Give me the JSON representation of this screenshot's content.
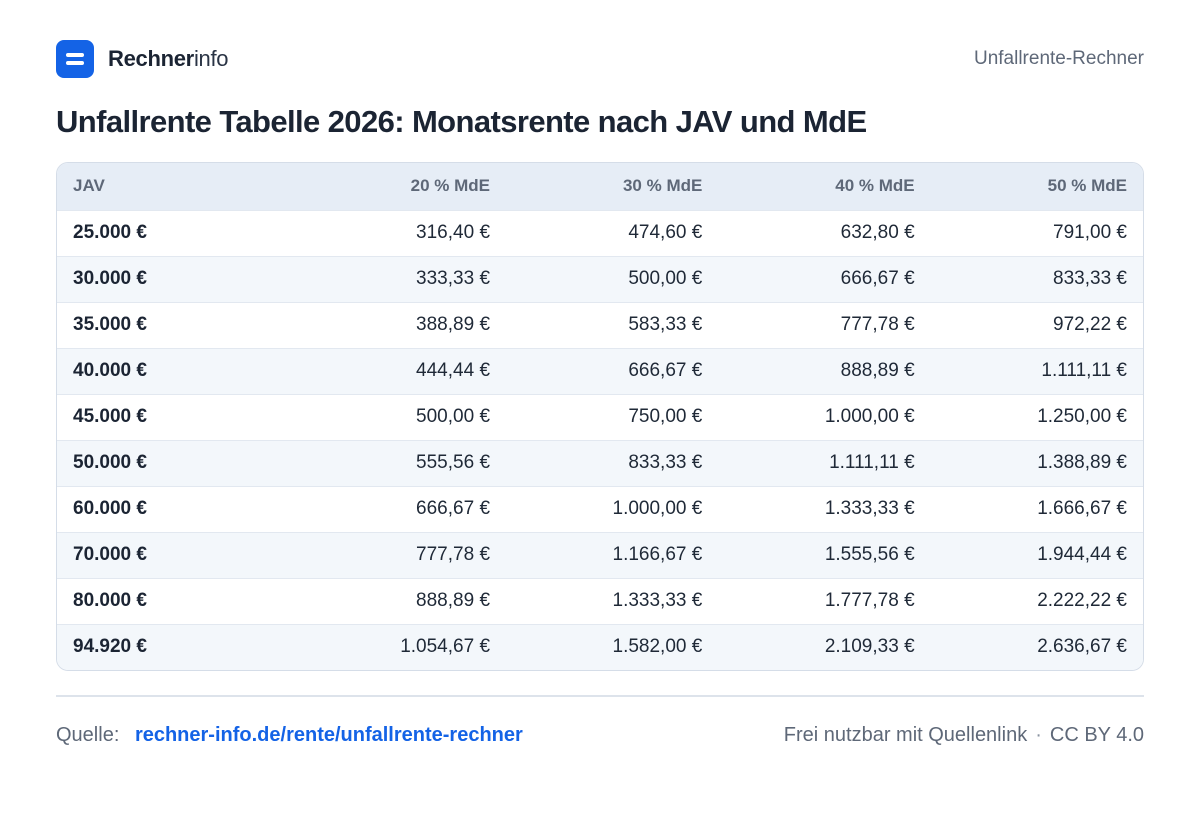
{
  "brand": {
    "name_bold": "Rechner",
    "name_light": "info"
  },
  "header": {
    "right_label": "Unfallrente-Rechner"
  },
  "title": "Unfallrente Tabelle 2026: Monatsrente nach JAV und MdE",
  "table": {
    "headers": [
      "JAV",
      "20 % MdE",
      "30 % MdE",
      "40 % MdE",
      "50 % MdE"
    ],
    "rows": [
      [
        "25.000 €",
        "316,40 €",
        "474,60 €",
        "632,80 €",
        "791,00 €"
      ],
      [
        "30.000 €",
        "333,33 €",
        "500,00 €",
        "666,67 €",
        "833,33 €"
      ],
      [
        "35.000 €",
        "388,89 €",
        "583,33 €",
        "777,78 €",
        "972,22 €"
      ],
      [
        "40.000 €",
        "444,44 €",
        "666,67 €",
        "888,89 €",
        "1.111,11 €"
      ],
      [
        "45.000 €",
        "500,00 €",
        "750,00 €",
        "1.000,00 €",
        "1.250,00 €"
      ],
      [
        "50.000 €",
        "555,56 €",
        "833,33 €",
        "1.111,11 €",
        "1.388,89 €"
      ],
      [
        "60.000 €",
        "666,67 €",
        "1.000,00 €",
        "1.333,33 €",
        "1.666,67 €"
      ],
      [
        "70.000 €",
        "777,78 €",
        "1.166,67 €",
        "1.555,56 €",
        "1.944,44 €"
      ],
      [
        "80.000 €",
        "888,89 €",
        "1.333,33 €",
        "1.777,78 €",
        "2.222,22 €"
      ],
      [
        "94.920 €",
        "1.054,67 €",
        "1.582,00 €",
        "2.109,33 €",
        "2.636,67 €"
      ]
    ]
  },
  "footer": {
    "source_label": "Quelle:",
    "source_link": "rechner-info.de/rente/unfallrente-rechner",
    "license_text": "Frei nutzbar mit Quellenlink",
    "separator": "·",
    "license_name": "CC BY 4.0"
  },
  "colors": {
    "brand_blue": "#1463e6",
    "header_bg": "#e6edf6",
    "stripe_bg": "#f3f7fb",
    "text_dark": "#1b2433",
    "text_muted": "#5e6878"
  },
  "icons": {
    "logo": "two-bars-logo-icon"
  }
}
